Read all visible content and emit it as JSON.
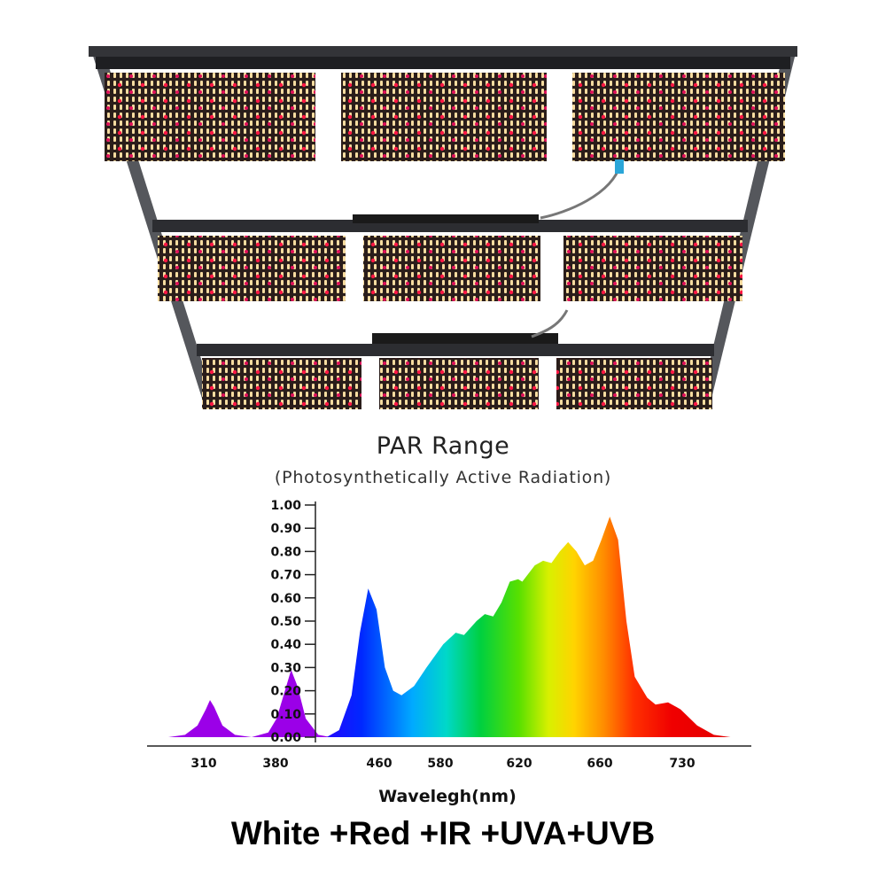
{
  "caption": "White +Red +IR +UVA+UVB",
  "chart_data": {
    "type": "area",
    "title": "PAR Range",
    "subtitle": "(Photosynthetically Active Radiation)",
    "xlabel": "Wavelegh(nm)",
    "ylabel": "",
    "ylim": [
      0,
      1.0
    ],
    "y_ticks": [
      "1.00",
      "0.90",
      "0.80",
      "0.70",
      "0.60",
      "0.50",
      "0.40",
      "0.30",
      "0.20",
      "0.10",
      "0.00"
    ],
    "x_ticks": [
      "310",
      "380",
      "460",
      "580",
      "620",
      "660",
      "730"
    ],
    "grid": false,
    "legend": "none",
    "series": [
      {
        "color": "#9b00e8",
        "points": [
          [
            0,
            0
          ],
          [
            4,
            0.01
          ],
          [
            7,
            0.05
          ],
          [
            9,
            0.12
          ],
          [
            10,
            0.16
          ],
          [
            11,
            0.13
          ],
          [
            13,
            0.05
          ],
          [
            16,
            0.01
          ],
          [
            20,
            0.0
          ],
          [
            24,
            0.02
          ],
          [
            26,
            0.08
          ],
          [
            28,
            0.2
          ],
          [
            29.5,
            0.29
          ],
          [
            31,
            0.22
          ],
          [
            33,
            0.08
          ],
          [
            36,
            0.01
          ],
          [
            39,
            0.0
          ]
        ]
      },
      {
        "color": "spectrum",
        "points": [
          [
            38,
            0.0
          ],
          [
            41,
            0.03
          ],
          [
            44,
            0.18
          ],
          [
            46,
            0.45
          ],
          [
            48,
            0.64
          ],
          [
            50,
            0.55
          ],
          [
            52,
            0.3
          ],
          [
            54,
            0.2
          ],
          [
            56,
            0.18
          ],
          [
            59,
            0.22
          ],
          [
            62,
            0.3
          ],
          [
            66,
            0.4
          ],
          [
            69,
            0.45
          ],
          [
            71,
            0.44
          ],
          [
            74,
            0.5
          ],
          [
            76,
            0.53
          ],
          [
            78,
            0.52
          ],
          [
            80,
            0.58
          ],
          [
            82,
            0.67
          ],
          [
            84,
            0.68
          ],
          [
            85,
            0.67
          ],
          [
            88,
            0.74
          ],
          [
            90,
            0.76
          ],
          [
            92,
            0.75
          ],
          [
            94,
            0.8
          ],
          [
            96,
            0.84
          ],
          [
            98,
            0.8
          ],
          [
            100,
            0.74
          ],
          [
            102,
            0.76
          ],
          [
            104,
            0.85
          ],
          [
            106,
            0.95
          ],
          [
            108,
            0.85
          ],
          [
            110,
            0.5
          ],
          [
            112,
            0.26
          ],
          [
            115,
            0.17
          ],
          [
            117,
            0.14
          ],
          [
            120,
            0.15
          ],
          [
            123,
            0.12
          ],
          [
            127,
            0.05
          ],
          [
            131,
            0.01
          ],
          [
            135,
            0.0
          ]
        ]
      }
    ]
  }
}
